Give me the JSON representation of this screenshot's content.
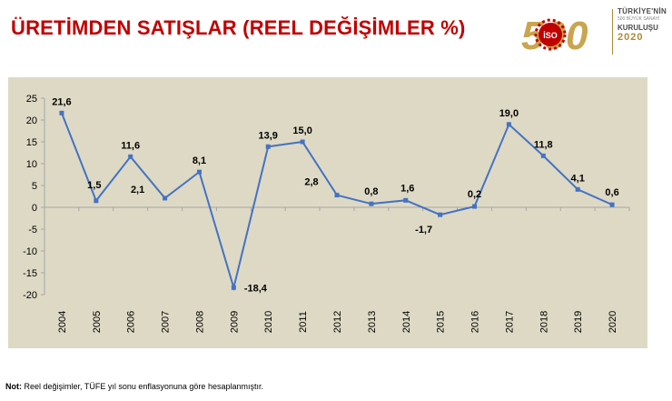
{
  "header": {
    "title": "ÜRETİMDEN SATIŞLAR (REEL DEĞİŞİMLER %)"
  },
  "logo": {
    "number": "500",
    "badge": "İSO",
    "line1": "TÜRKİYE'NİN",
    "line2": "500 BÜYÜK SANAYİ",
    "line3": "KURULUŞU",
    "line4": "2020",
    "colors": {
      "gold": "#c9a54f",
      "red": "#c00000"
    }
  },
  "footer": {
    "note_label": "Not:",
    "note_text": " Reel değişimler, TÜFE yıl sonu enflasyonuna göre hesaplanmıştır."
  },
  "chart_data": {
    "type": "line",
    "title": "ÜRETİMDEN SATIŞLAR (REEL DEĞİŞİMLER %)",
    "categories": [
      "2004",
      "2005",
      "2006",
      "2007",
      "2008",
      "2009",
      "2010",
      "2011",
      "2012",
      "2013",
      "2014",
      "2015",
      "2016",
      "2017",
      "2018",
      "2019",
      "2020"
    ],
    "series": [
      {
        "values": [
          21.6,
          1.5,
          11.6,
          2.1,
          8.1,
          -18.4,
          13.9,
          15.0,
          2.8,
          0.8,
          1.6,
          -1.7,
          0.2,
          19.0,
          11.8,
          4.1,
          0.6
        ],
        "labels": [
          "21,6",
          "1,5",
          "11,6",
          "2,1",
          "8,1",
          "-18,4",
          "13,9",
          "15,0",
          "2,8",
          "0,8",
          "1,6",
          "-1,7",
          "0,2",
          "19,0",
          "11,8",
          "4,1",
          "0,6"
        ],
        "color": "#4472c4"
      }
    ],
    "ylim": [
      -20,
      25
    ],
    "yticks": [
      25,
      20,
      15,
      10,
      5,
      0,
      -5,
      -10,
      -15,
      -20
    ],
    "xlabel": "",
    "ylabel": "",
    "grid": false,
    "legend": "none",
    "background": "#ddd9c4"
  }
}
